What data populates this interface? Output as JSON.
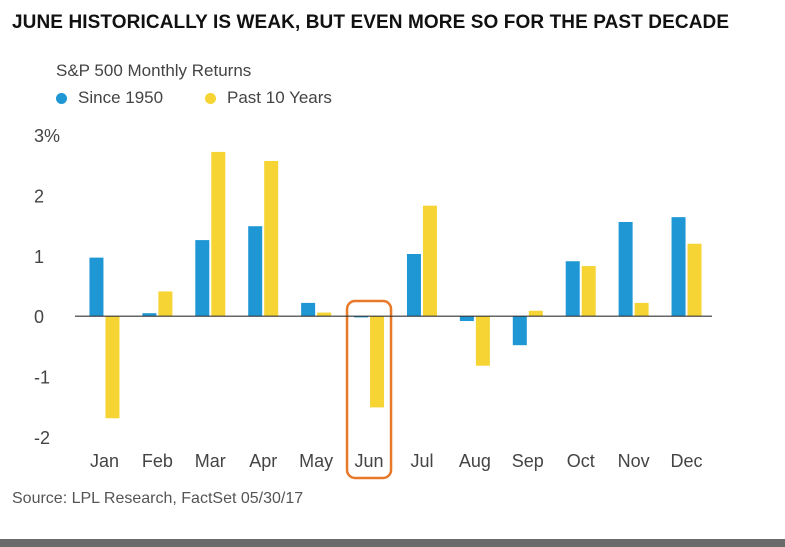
{
  "header": {
    "title": "JUNE HISTORICALLY IS WEAK, BUT EVEN MORE SO FOR THE PAST DECADE"
  },
  "footer": {
    "source": "Source: LPL Research, FactSet   05/30/17"
  },
  "colors": {
    "since_1950": "#1f97d4",
    "past_10_years": "#f6d433",
    "highlight": "#e8782a",
    "zero_line": "#333333",
    "bottom_rule": "#6a6a6a"
  },
  "chart_data": {
    "type": "bar",
    "title": "S&P 500 Monthly Returns",
    "xlabel": "",
    "ylabel": "",
    "ylim": [
      -2,
      3
    ],
    "yticks": [
      -2,
      -1,
      0,
      1,
      2,
      3
    ],
    "ytick_labels": [
      "-2",
      "-1",
      "0",
      "1",
      "2",
      "3%"
    ],
    "grid": false,
    "legend_position": "top-left",
    "highlighted_category": "Jun",
    "categories": [
      "Jan",
      "Feb",
      "Mar",
      "Apr",
      "May",
      "Jun",
      "Jul",
      "Aug",
      "Sep",
      "Oct",
      "Nov",
      "Dec"
    ],
    "series": [
      {
        "name": "Since 1950",
        "color": "#1f97d4",
        "values": [
          0.97,
          0.05,
          1.26,
          1.49,
          0.22,
          -0.02,
          1.03,
          -0.08,
          -0.48,
          0.91,
          1.56,
          1.64
        ]
      },
      {
        "name": "Past 10 Years",
        "color": "#f6d433",
        "values": [
          -1.69,
          0.41,
          2.72,
          2.57,
          0.06,
          -1.51,
          1.83,
          -0.82,
          0.09,
          0.83,
          0.22,
          1.2
        ]
      }
    ]
  }
}
